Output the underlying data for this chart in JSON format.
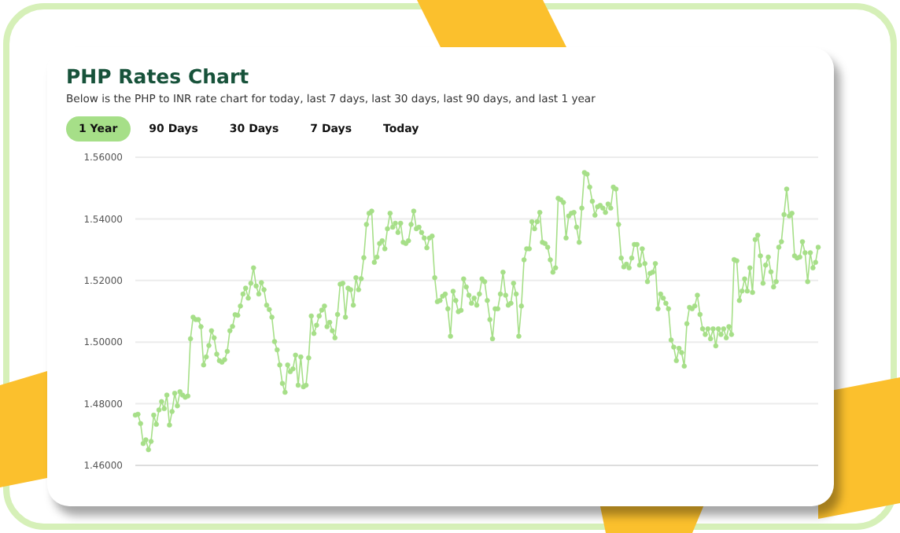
{
  "chart_data": {
    "type": "line",
    "title": "PHP Rates Chart",
    "subtitle": "Below is the PHP to INR rate chart for today, last 7 days, last 30 days, last 90 days, and last 1 year",
    "annotations": [
      "1 Year",
      "90 Days",
      "30 Days",
      "7 Days",
      "Today"
    ],
    "categories": [
      null,
      null,
      null,
      null,
      null,
      null,
      null,
      null,
      null,
      null,
      null,
      null,
      null,
      null,
      null,
      null,
      null,
      null,
      null,
      null,
      null,
      null,
      null,
      null,
      null,
      null,
      null,
      null,
      null,
      null,
      null,
      null,
      null,
      null,
      null,
      null,
      null,
      null,
      null,
      null,
      null,
      null,
      null,
      null,
      null,
      null,
      null,
      null,
      null,
      null,
      null,
      null,
      null,
      null,
      null,
      null,
      null,
      null,
      null,
      null,
      null,
      null,
      null,
      null,
      null,
      null,
      null,
      null,
      null,
      null,
      null,
      null,
      null,
      null,
      null,
      null,
      null,
      null,
      null,
      null,
      null,
      null,
      null,
      null,
      null,
      null,
      null,
      null,
      null,
      null,
      null,
      null,
      null,
      null,
      null,
      null,
      null,
      null,
      null,
      null,
      null,
      null,
      null,
      null,
      null,
      null,
      null,
      null,
      null,
      null,
      null,
      null,
      null,
      null,
      null,
      null,
      null,
      null,
      null,
      null,
      null,
      null,
      null,
      null,
      null,
      null,
      null,
      null,
      null,
      null,
      null,
      null,
      null,
      null,
      null,
      null,
      null,
      null,
      null,
      null,
      null,
      null,
      null,
      null,
      null,
      null,
      null,
      null,
      null,
      null,
      null,
      null,
      null,
      null,
      null,
      null,
      null,
      null,
      null,
      null,
      null,
      null,
      null,
      null,
      null,
      null,
      null,
      null,
      null,
      null,
      null,
      null,
      null,
      null,
      null,
      null,
      null,
      null,
      null,
      null,
      null,
      null,
      null,
      null,
      null,
      null,
      null,
      null,
      null,
      null,
      null,
      null,
      null,
      null,
      null,
      null,
      null,
      null,
      null,
      null,
      null,
      null,
      null,
      null,
      null,
      null,
      null,
      null,
      null,
      null,
      null,
      null,
      null,
      null,
      null,
      null,
      null,
      null,
      null,
      null,
      null,
      null,
      null,
      null,
      null,
      null,
      null,
      null,
      null,
      null,
      null,
      null,
      null,
      null,
      null,
      null,
      null,
      null,
      null,
      null,
      null,
      null,
      null,
      null,
      null,
      null,
      null,
      null,
      null,
      null,
      null,
      null,
      null,
      null,
      null,
      null,
      null,
      null,
      null,
      null,
      null
    ],
    "series": [
      {
        "color": "#a6df88",
        "values": [
          1.4763,
          1.4766,
          1.4736,
          1.4671,
          1.4683,
          1.4651,
          1.4678,
          1.4763,
          1.4733,
          1.478,
          1.4807,
          1.4784,
          1.4828,
          1.4731,
          1.4775,
          1.4834,
          1.4793,
          1.4839,
          1.4828,
          1.4821,
          1.4825,
          1.5011,
          1.5081,
          1.5073,
          1.5073,
          1.505,
          1.4926,
          1.4952,
          1.4989,
          1.5037,
          1.5014,
          1.4961,
          1.494,
          1.4935,
          1.4943,
          1.497,
          1.5037,
          1.5051,
          1.5089,
          1.5087,
          1.5117,
          1.5156,
          1.5175,
          1.5143,
          1.5191,
          1.5241,
          1.5182,
          1.5156,
          1.5193,
          1.517,
          1.512,
          1.5106,
          1.5081,
          1.5002,
          1.4975,
          1.4926,
          1.4866,
          1.4837,
          1.4926,
          1.4904,
          1.4913,
          1.4958,
          1.486,
          1.4952,
          1.4855,
          1.486,
          1.4949,
          1.5085,
          1.5028,
          1.5055,
          1.5085,
          1.5104,
          1.5117,
          1.505,
          1.5064,
          1.5037,
          1.5014,
          1.509,
          1.5188,
          1.5191,
          1.5081,
          1.5175,
          1.517,
          1.512,
          1.5209,
          1.517,
          1.5206,
          1.5274,
          1.5382,
          1.5418,
          1.5425,
          1.5259,
          1.5276,
          1.532,
          1.5329,
          1.5303,
          1.5368,
          1.5418,
          1.5373,
          1.5386,
          1.5356,
          1.5386,
          1.5324,
          1.532,
          1.5329,
          1.5382,
          1.5425,
          1.5368,
          1.5373,
          1.5356,
          1.5338,
          1.5306,
          1.5338,
          1.5344,
          1.5209,
          1.5131,
          1.5135,
          1.5149,
          1.5156,
          1.5108,
          1.5019,
          1.5165,
          1.5135,
          1.5099,
          1.5103,
          1.5205,
          1.5179,
          1.5152,
          1.5126,
          1.5143,
          1.512,
          1.5156,
          1.5205,
          1.5196,
          1.5135,
          1.5073,
          1.5011,
          1.5108,
          1.5108,
          1.5156,
          1.5227,
          1.5152,
          1.512,
          1.5126,
          1.5191,
          1.5156,
          1.5019,
          1.5117,
          1.5267,
          1.5303,
          1.5303,
          1.5391,
          1.5368,
          1.5391,
          1.5421,
          1.5324,
          1.532,
          1.5308,
          1.5267,
          1.5227,
          1.5241,
          1.5467,
          1.5462,
          1.5453,
          1.5338,
          1.5409,
          1.5418,
          1.5421,
          1.5373,
          1.5324,
          1.5435,
          1.555,
          1.5545,
          1.5503,
          1.5457,
          1.5412,
          1.5439,
          1.5444,
          1.5435,
          1.5421,
          1.5448,
          1.5435,
          1.5503,
          1.5497,
          1.5382,
          1.5273,
          1.5244,
          1.5253,
          1.5241,
          1.5273,
          1.5317,
          1.5317,
          1.525,
          1.5303,
          1.5255,
          1.5196,
          1.5223,
          1.5227,
          1.5255,
          1.5108,
          1.5156,
          1.5143,
          1.5126,
          1.5108,
          1.5007,
          1.4984,
          1.494,
          1.498,
          1.4966,
          1.4922,
          1.506,
          1.5113,
          1.5108,
          1.5117,
          1.5152,
          1.509,
          1.5043,
          1.5025,
          1.5043,
          1.5011,
          1.5043,
          1.4988,
          1.5043,
          1.5025,
          1.5043,
          1.5014,
          1.505,
          1.5025,
          1.5268,
          1.5264,
          1.5135,
          1.5166,
          1.5205,
          1.5166,
          1.5241,
          1.5161,
          1.5333,
          1.5347,
          1.528,
          1.5191,
          1.525,
          1.5276,
          1.5228,
          1.5179,
          1.5196,
          1.5308,
          1.5326,
          1.5414,
          1.5497,
          1.5409,
          1.5418,
          1.528,
          1.5273,
          1.5276,
          1.5326,
          1.529,
          1.5196,
          1.529,
          1.5241,
          1.5259,
          1.5308
        ]
      }
    ],
    "ylim": [
      1.46,
      1.56
    ],
    "yticks": [
      {
        "value": 1.46,
        "label": "1.46000"
      },
      {
        "value": 1.48,
        "label": "1.48000"
      },
      {
        "value": 1.5,
        "label": "1.50000"
      },
      {
        "value": 1.52,
        "label": "1.52000"
      },
      {
        "value": 1.54,
        "label": "1.54000"
      },
      {
        "value": 1.56,
        "label": "1.56000"
      }
    ],
    "grid": "y",
    "marker": "circle",
    "line_style": "solid",
    "legend": false,
    "tick_labels": "y"
  }
}
